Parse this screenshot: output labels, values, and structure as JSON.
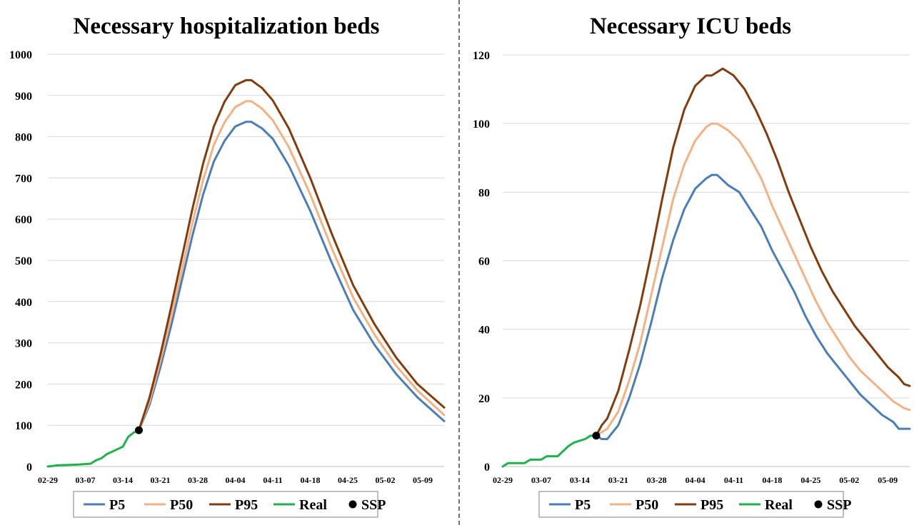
{
  "colors": {
    "P5": "#4a7ebb",
    "P50": "#f4b183",
    "P95": "#843c0c",
    "Real": "#1fb24a",
    "SSP": "#000000",
    "grid": "#d9d9d9",
    "divider": "#404040"
  },
  "chart_data": [
    {
      "type": "line",
      "title": "Necessary hospitalization beds",
      "xlabel": "",
      "ylabel": "",
      "ylim": [
        0,
        1000
      ],
      "yticks": [
        "0",
        "100",
        "200",
        "300",
        "400",
        "500",
        "600",
        "700",
        "800",
        "900",
        "1000"
      ],
      "xticks": [
        "02-29",
        "03-07",
        "03-14",
        "03-21",
        "03-28",
        "04-04",
        "04-11",
        "04-18",
        "04-25",
        "05-02",
        "05-09"
      ],
      "x_range": [
        "02-29",
        "05-13"
      ],
      "grid": "horizontal",
      "legend": {
        "position": "bottom",
        "entries": [
          "P5",
          "P50",
          "P95",
          "Real",
          "SSP"
        ]
      },
      "series": [
        {
          "name": "P5",
          "points": [
            [
              "03-17",
              88
            ],
            [
              "03-19",
              150
            ],
            [
              "03-21",
              240
            ],
            [
              "03-23",
              340
            ],
            [
              "03-25",
              450
            ],
            [
              "03-27",
              560
            ],
            [
              "03-29",
              660
            ],
            [
              "03-31",
              740
            ],
            [
              "04-02",
              790
            ],
            [
              "04-04",
              825
            ],
            [
              "04-06",
              836
            ],
            [
              "04-07",
              836
            ],
            [
              "04-09",
              820
            ],
            [
              "04-11",
              795
            ],
            [
              "04-14",
              730
            ],
            [
              "04-18",
              620
            ],
            [
              "04-22",
              495
            ],
            [
              "04-26",
              380
            ],
            [
              "04-30",
              295
            ],
            [
              "05-04",
              225
            ],
            [
              "05-08",
              168
            ],
            [
              "05-13",
              110
            ]
          ]
        },
        {
          "name": "P50",
          "points": [
            [
              "03-17",
              88
            ],
            [
              "03-19",
              158
            ],
            [
              "03-21",
              255
            ],
            [
              "03-23",
              360
            ],
            [
              "03-25",
              475
            ],
            [
              "03-27",
              590
            ],
            [
              "03-29",
              695
            ],
            [
              "03-31",
              780
            ],
            [
              "04-02",
              835
            ],
            [
              "04-04",
              872
            ],
            [
              "04-06",
              886
            ],
            [
              "04-07",
              886
            ],
            [
              "04-09",
              868
            ],
            [
              "04-11",
              840
            ],
            [
              "04-14",
              775
            ],
            [
              "04-18",
              660
            ],
            [
              "04-22",
              530
            ],
            [
              "04-26",
              410
            ],
            [
              "04-30",
              320
            ],
            [
              "05-04",
              245
            ],
            [
              "05-08",
              185
            ],
            [
              "05-13",
              125
            ]
          ]
        },
        {
          "name": "P95",
          "points": [
            [
              "03-17",
              88
            ],
            [
              "03-19",
              168
            ],
            [
              "03-21",
              270
            ],
            [
              "03-23",
              385
            ],
            [
              "03-25",
              505
            ],
            [
              "03-27",
              625
            ],
            [
              "03-29",
              735
            ],
            [
              "03-31",
              825
            ],
            [
              "04-02",
              885
            ],
            [
              "04-04",
              925
            ],
            [
              "04-06",
              937
            ],
            [
              "04-07",
              937
            ],
            [
              "04-09",
              918
            ],
            [
              "04-11",
              888
            ],
            [
              "04-14",
              820
            ],
            [
              "04-18",
              700
            ],
            [
              "04-22",
              565
            ],
            [
              "04-26",
              440
            ],
            [
              "04-30",
              345
            ],
            [
              "05-04",
              265
            ],
            [
              "05-08",
              200
            ],
            [
              "05-13",
              143
            ]
          ]
        },
        {
          "name": "Real",
          "points": [
            [
              "02-29",
              0
            ],
            [
              "03-02",
              3
            ],
            [
              "03-04",
              4
            ],
            [
              "03-06",
              5
            ],
            [
              "03-08",
              7
            ],
            [
              "03-09",
              15
            ],
            [
              "03-10",
              20
            ],
            [
              "03-11",
              30
            ],
            [
              "03-13",
              42
            ],
            [
              "03-14",
              48
            ],
            [
              "03-15",
              72
            ],
            [
              "03-16",
              82
            ],
            [
              "03-17",
              88
            ]
          ]
        },
        {
          "name": "SSP",
          "points": [
            [
              "03-17",
              88
            ]
          ]
        }
      ]
    },
    {
      "type": "line",
      "title": "Necessary ICU beds",
      "xlabel": "",
      "ylabel": "",
      "ylim": [
        0,
        120
      ],
      "yticks": [
        "0",
        "20",
        "40",
        "60",
        "80",
        "100",
        "120"
      ],
      "xticks": [
        "02-29",
        "03-07",
        "03-14",
        "03-21",
        "03-28",
        "04-04",
        "04-11",
        "04-18",
        "04-25",
        "05-02",
        "05-09"
      ],
      "x_range": [
        "02-29",
        "05-13"
      ],
      "grid": "horizontal",
      "legend": {
        "position": "bottom",
        "entries": [
          "P5",
          "P50",
          "P95",
          "Real",
          "SSP"
        ]
      },
      "series": [
        {
          "name": "P5",
          "points": [
            [
              "03-17",
              9
            ],
            [
              "03-18",
              8
            ],
            [
              "03-19",
              8
            ],
            [
              "03-21",
              12
            ],
            [
              "03-23",
              20
            ],
            [
              "03-25",
              30
            ],
            [
              "03-27",
              42
            ],
            [
              "03-29",
              55
            ],
            [
              "03-31",
              66
            ],
            [
              "04-02",
              75
            ],
            [
              "04-04",
              81
            ],
            [
              "04-06",
              84
            ],
            [
              "04-07",
              85
            ],
            [
              "04-08",
              85
            ],
            [
              "04-10",
              82
            ],
            [
              "04-12",
              80
            ],
            [
              "04-14",
              75
            ],
            [
              "04-16",
              70
            ],
            [
              "04-18",
              63
            ],
            [
              "04-20",
              57
            ],
            [
              "04-22",
              51
            ],
            [
              "04-24",
              44
            ],
            [
              "04-26",
              38
            ],
            [
              "04-28",
              33
            ],
            [
              "04-30",
              29
            ],
            [
              "05-02",
              25
            ],
            [
              "05-04",
              21
            ],
            [
              "05-06",
              18
            ],
            [
              "05-08",
              15
            ],
            [
              "05-10",
              13
            ],
            [
              "05-11",
              11
            ],
            [
              "05-13",
              11
            ]
          ]
        },
        {
          "name": "P50",
          "points": [
            [
              "03-17",
              9
            ],
            [
              "03-18",
              10
            ],
            [
              "03-19",
              11
            ],
            [
              "03-21",
              16
            ],
            [
              "03-23",
              25
            ],
            [
              "03-25",
              36
            ],
            [
              "03-27",
              50
            ],
            [
              "03-29",
              64
            ],
            [
              "03-31",
              78
            ],
            [
              "04-02",
              88
            ],
            [
              "04-04",
              95
            ],
            [
              "04-06",
              99
            ],
            [
              "04-07",
              100
            ],
            [
              "04-08",
              100
            ],
            [
              "04-10",
              98
            ],
            [
              "04-12",
              95
            ],
            [
              "04-14",
              90
            ],
            [
              "04-16",
              84
            ],
            [
              "04-18",
              76
            ],
            [
              "04-20",
              69
            ],
            [
              "04-22",
              62
            ],
            [
              "04-24",
              55
            ],
            [
              "04-26",
              48
            ],
            [
              "04-28",
              42
            ],
            [
              "04-30",
              37
            ],
            [
              "05-02",
              32
            ],
            [
              "05-04",
              28
            ],
            [
              "05-06",
              25
            ],
            [
              "05-08",
              22
            ],
            [
              "05-10",
              19
            ],
            [
              "05-12",
              17
            ],
            [
              "05-13",
              16.5
            ]
          ]
        },
        {
          "name": "P95",
          "points": [
            [
              "03-17",
              9
            ],
            [
              "03-18",
              12
            ],
            [
              "03-19",
              14
            ],
            [
              "03-21",
              22
            ],
            [
              "03-23",
              34
            ],
            [
              "03-25",
              47
            ],
            [
              "03-27",
              62
            ],
            [
              "03-29",
              78
            ],
            [
              "03-31",
              93
            ],
            [
              "04-02",
              104
            ],
            [
              "04-04",
              111
            ],
            [
              "04-06",
              114
            ],
            [
              "04-07",
              114
            ],
            [
              "04-09",
              116
            ],
            [
              "04-11",
              114
            ],
            [
              "04-13",
              110
            ],
            [
              "04-15",
              104
            ],
            [
              "04-17",
              97
            ],
            [
              "04-19",
              89
            ],
            [
              "04-21",
              80
            ],
            [
              "04-23",
              72
            ],
            [
              "04-25",
              64
            ],
            [
              "04-27",
              57
            ],
            [
              "04-29",
              51
            ],
            [
              "05-01",
              46
            ],
            [
              "05-03",
              41
            ],
            [
              "05-05",
              37
            ],
            [
              "05-07",
              33
            ],
            [
              "05-09",
              29
            ],
            [
              "05-11",
              26
            ],
            [
              "05-12",
              24
            ],
            [
              "05-13",
              23.5
            ]
          ]
        },
        {
          "name": "Real",
          "points": [
            [
              "02-29",
              0
            ],
            [
              "03-01",
              1
            ],
            [
              "03-04",
              1
            ],
            [
              "03-05",
              2
            ],
            [
              "03-07",
              2
            ],
            [
              "03-08",
              3
            ],
            [
              "03-10",
              3
            ],
            [
              "03-12",
              6
            ],
            [
              "03-13",
              7
            ],
            [
              "03-15",
              8
            ],
            [
              "03-16",
              9
            ],
            [
              "03-17",
              9
            ]
          ]
        },
        {
          "name": "SSP",
          "points": [
            [
              "03-17",
              9
            ]
          ]
        }
      ]
    }
  ]
}
